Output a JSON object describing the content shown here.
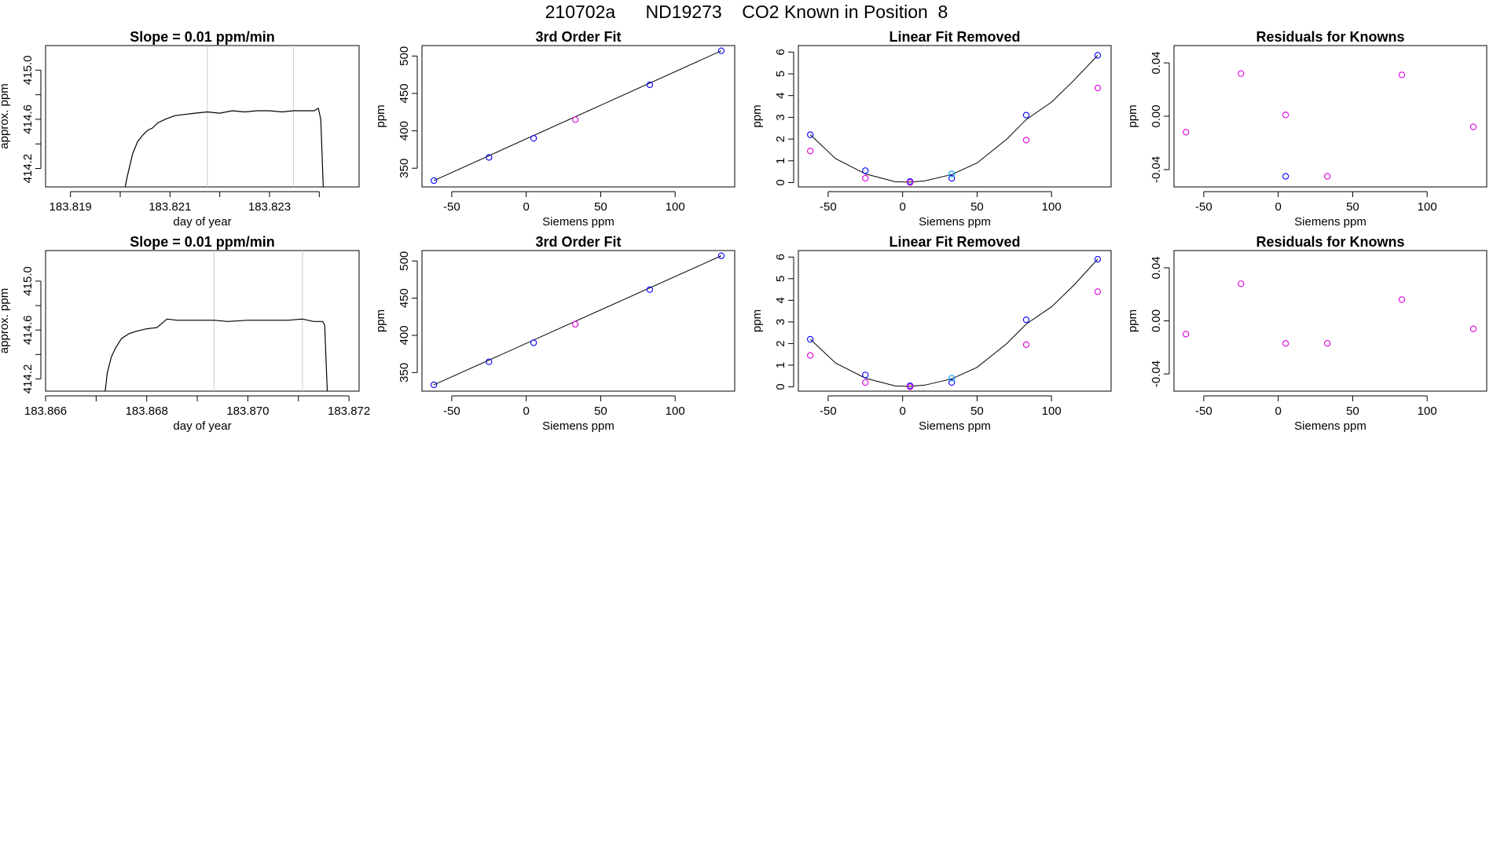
{
  "title": "210702a      ND19273    CO2 Known in Position  8",
  "colors": {
    "blue": "#0000ff",
    "magenta": "#dd00dd",
    "cyan": "#00a0ff",
    "line": "#000000",
    "vline": "#cccccc",
    "red": "#ff0000"
  },
  "chart_data": [
    {
      "type": "line",
      "title": "Slope =  0.01  ppm/min",
      "xlabel": "day of year",
      "ylabel": "approx. ppm",
      "xlim": [
        183.8185,
        183.8248
      ],
      "ylim": [
        414.05,
        415.2
      ],
      "xticks": [
        183.819,
        183.82,
        183.821,
        183.822,
        183.823,
        183.824
      ],
      "xtick_labels": [
        "183.819",
        "",
        "183.821",
        "",
        "183.823",
        ""
      ],
      "yticks": [
        414.2,
        414.4,
        414.6,
        414.8,
        415.0
      ],
      "ytick_labels": [
        "414.2",
        "",
        "414.6",
        "",
        "415.0"
      ],
      "vlines": [
        183.82175,
        183.82348
      ],
      "series": [
        {
          "x": [
            183.8201,
            183.82015,
            183.82025,
            183.82035,
            183.82045,
            183.82055,
            183.82065,
            183.82075,
            183.8209,
            183.8211,
            183.8213,
            183.8215,
            183.82175,
            183.822,
            183.82225,
            183.8225,
            183.82275,
            183.823,
            183.82325,
            183.82348,
            183.8237,
            183.8239,
            183.82398,
            183.82403,
            183.82408
          ],
          "y": [
            414.05,
            414.15,
            414.32,
            414.42,
            414.47,
            414.51,
            414.53,
            414.57,
            414.6,
            414.63,
            414.64,
            414.65,
            414.66,
            414.65,
            414.67,
            414.66,
            414.67,
            414.67,
            414.66,
            414.67,
            414.67,
            414.67,
            414.69,
            414.6,
            414.05
          ]
        }
      ]
    },
    {
      "type": "scatter",
      "title": "3rd Order Fit",
      "xlabel": "Siemens ppm",
      "ylabel": "ppm",
      "xlim": [
        -70,
        140
      ],
      "ylim": [
        325,
        514
      ],
      "xticks": [
        -50,
        0,
        50,
        100
      ],
      "yticks": [
        350,
        400,
        450,
        500
      ],
      "series": [
        {
          "name": "",
          "color": "blue",
          "x": [
            -62,
            -25,
            5,
            83,
            131
          ],
          "y": [
            333.5,
            364.5,
            390,
            461.5,
            507
          ]
        },
        {
          "name": "",
          "color": "magenta",
          "x": [
            33
          ],
          "y": [
            415
          ]
        }
      ],
      "fit_line": {
        "x": [
          -62,
          131
        ],
        "y": [
          333.5,
          507
        ]
      }
    },
    {
      "type": "scatter",
      "title": "Linear Fit Removed",
      "xlabel": "Siemens ppm",
      "ylabel": "ppm",
      "xlim": [
        -70,
        140
      ],
      "ylim": [
        -0.2,
        6.3
      ],
      "xticks": [
        -50,
        0,
        50,
        100
      ],
      "yticks": [
        0,
        1,
        2,
        3,
        4,
        5,
        6
      ],
      "series": [
        {
          "name": "",
          "color": "blue",
          "x": [
            -62,
            -25,
            5,
            33,
            83,
            131
          ],
          "y": [
            2.2,
            0.55,
            0.05,
            0.2,
            3.1,
            5.85
          ]
        },
        {
          "name": "",
          "color": "cyan",
          "x": [
            33
          ],
          "y": [
            0.4
          ]
        },
        {
          "name": "",
          "color": "magenta",
          "x": [
            -62,
            -25,
            5,
            83,
            131
          ],
          "y": [
            1.45,
            0.2,
            0.0,
            1.95,
            4.35
          ]
        }
      ],
      "fit_curve": {
        "x": [
          -62,
          -45,
          -25,
          -5,
          5,
          15,
          33,
          50,
          70,
          83,
          100,
          115,
          131
        ],
        "y": [
          2.2,
          1.1,
          0.4,
          0.04,
          0.02,
          0.08,
          0.37,
          0.9,
          2.0,
          2.9,
          3.7,
          4.7,
          5.85
        ]
      }
    },
    {
      "type": "scatter",
      "title": "Residuals for Knowns",
      "xlabel": "Siemens ppm",
      "ylabel": "ppm",
      "xlim": [
        -70,
        140
      ],
      "ylim": [
        -0.053,
        0.053
      ],
      "xticks": [
        -50,
        0,
        50,
        100
      ],
      "yticks": [
        -0.04,
        0.0,
        0.04
      ],
      "ytick_labels": [
        "-0.04",
        "0.00",
        "0.04"
      ],
      "series": [
        {
          "name": "",
          "color": "magenta",
          "x": [
            -62,
            -25,
            5,
            33,
            83,
            131
          ],
          "y": [
            -0.012,
            0.032,
            0.001,
            -0.045,
            0.031,
            -0.008
          ]
        },
        {
          "name": "",
          "color": "blue",
          "x": [
            5
          ],
          "y": [
            -0.045
          ]
        }
      ]
    },
    {
      "type": "line",
      "title": "Slope =  0.01  ppm/min",
      "xlabel": "day of year",
      "ylabel": "approx. ppm",
      "xlim": [
        183.866,
        183.8722
      ],
      "ylim": [
        414.1,
        415.25
      ],
      "xticks": [
        183.866,
        183.867,
        183.868,
        183.869,
        183.87,
        183.871,
        183.872
      ],
      "xtick_labels": [
        "183.866",
        "",
        "183.868",
        "",
        "183.870",
        "",
        "183.872"
      ],
      "yticks": [
        414.2,
        414.4,
        414.6,
        414.8,
        415.0
      ],
      "ytick_labels": [
        "414.2",
        "",
        "414.6",
        "",
        "415.0"
      ],
      "vlines": [
        183.86933,
        183.87108
      ],
      "series": [
        {
          "x": [
            183.86718,
            183.86722,
            183.8673,
            183.86738,
            183.8675,
            183.86765,
            183.8678,
            183.868,
            183.8682,
            183.8684,
            183.8686,
            183.8688,
            183.869,
            183.86933,
            183.8696,
            183.87,
            183.8704,
            183.8708,
            183.87108,
            183.8713,
            183.87148,
            183.87152,
            183.87157
          ],
          "y": [
            414.1,
            414.25,
            414.38,
            414.45,
            414.53,
            414.57,
            414.59,
            414.61,
            414.62,
            414.69,
            414.68,
            414.68,
            414.68,
            414.68,
            414.67,
            414.68,
            414.68,
            414.68,
            414.69,
            414.67,
            414.67,
            414.64,
            414.1
          ]
        }
      ]
    },
    {
      "type": "scatter",
      "title": "3rd Order Fit",
      "xlabel": "Siemens ppm",
      "ylabel": "ppm",
      "xlim": [
        -70,
        140
      ],
      "ylim": [
        325,
        514
      ],
      "xticks": [
        -50,
        0,
        50,
        100
      ],
      "yticks": [
        350,
        400,
        450,
        500
      ],
      "series": [
        {
          "name": "",
          "color": "blue",
          "x": [
            -62,
            -25,
            5,
            83,
            131
          ],
          "y": [
            333.5,
            364.5,
            390,
            461.5,
            507
          ]
        },
        {
          "name": "",
          "color": "magenta",
          "x": [
            33
          ],
          "y": [
            415
          ]
        }
      ],
      "fit_line": {
        "x": [
          -62,
          131
        ],
        "y": [
          333.5,
          507
        ]
      }
    },
    {
      "type": "scatter",
      "title": "Linear Fit Removed",
      "xlabel": "Siemens ppm",
      "ylabel": "ppm",
      "xlim": [
        -70,
        140
      ],
      "ylim": [
        -0.2,
        6.3
      ],
      "xticks": [
        -50,
        0,
        50,
        100
      ],
      "yticks": [
        0,
        1,
        2,
        3,
        4,
        5,
        6
      ],
      "series": [
        {
          "name": "",
          "color": "blue",
          "x": [
            -62,
            -25,
            5,
            33,
            83,
            131
          ],
          "y": [
            2.2,
            0.55,
            0.05,
            0.2,
            3.1,
            5.9
          ]
        },
        {
          "name": "",
          "color": "cyan",
          "x": [
            33
          ],
          "y": [
            0.4
          ]
        },
        {
          "name": "",
          "color": "magenta",
          "x": [
            -62,
            -25,
            5,
            83,
            131
          ],
          "y": [
            1.45,
            0.2,
            0.0,
            1.95,
            4.4
          ]
        }
      ],
      "fit_curve": {
        "x": [
          -62,
          -45,
          -25,
          -5,
          5,
          15,
          33,
          50,
          70,
          83,
          100,
          115,
          131
        ],
        "y": [
          2.2,
          1.1,
          0.4,
          0.04,
          0.02,
          0.08,
          0.37,
          0.9,
          2.0,
          2.9,
          3.7,
          4.7,
          5.9
        ]
      }
    },
    {
      "type": "scatter",
      "title": "Residuals for Knowns",
      "xlabel": "Siemens ppm",
      "ylabel": "ppm",
      "xlim": [
        -70,
        140
      ],
      "ylim": [
        -0.053,
        0.053
      ],
      "xticks": [
        -50,
        0,
        50,
        100
      ],
      "yticks": [
        -0.04,
        0.0,
        0.04
      ],
      "ytick_labels": [
        "-0.04",
        "0.00",
        "0.04"
      ],
      "series": [
        {
          "name": "",
          "color": "magenta",
          "x": [
            -62,
            -25,
            5,
            33,
            83,
            131
          ],
          "y": [
            -0.01,
            0.028,
            -0.017,
            -0.017,
            0.016,
            -0.006
          ]
        }
      ]
    }
  ]
}
